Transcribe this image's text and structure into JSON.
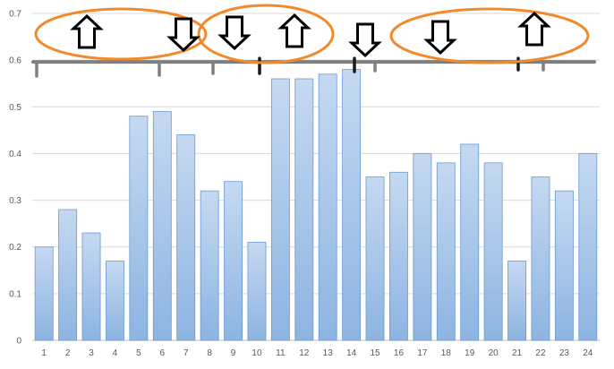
{
  "chart_data": {
    "type": "bar",
    "categories": [
      "1",
      "2",
      "3",
      "4",
      "5",
      "6",
      "7",
      "8",
      "9",
      "10",
      "11",
      "12",
      "13",
      "14",
      "15",
      "16",
      "17",
      "18",
      "19",
      "20",
      "21",
      "22",
      "23",
      "24"
    ],
    "values": [
      0.2,
      0.28,
      0.23,
      0.17,
      0.48,
      0.49,
      0.44,
      0.32,
      0.34,
      0.21,
      0.56,
      0.56,
      0.57,
      0.58,
      0.35,
      0.36,
      0.4,
      0.38,
      0.42,
      0.38,
      0.17,
      0.35,
      0.32,
      0.4
    ],
    "y_ticks": [
      "0",
      "0.1",
      "0.2",
      "0.3",
      "0.4",
      "0.5",
      "0.6",
      "0.7"
    ],
    "ylim": [
      0,
      0.7
    ],
    "grid": true,
    "legend": "none",
    "colors": {
      "bar_top": "#c5d9f1",
      "bar_bottom": "#8db4e2",
      "bar_stroke": "#6a9bd1",
      "grid": "#d9d9d9",
      "annotation_line": "#7f7f7f",
      "ellipse": "#f08a2c"
    },
    "annotations": {
      "reference_line_value": 0.6,
      "ellipses": 3,
      "arrows": [
        "up",
        "down",
        "down",
        "up",
        "down",
        "down",
        "up"
      ]
    }
  }
}
